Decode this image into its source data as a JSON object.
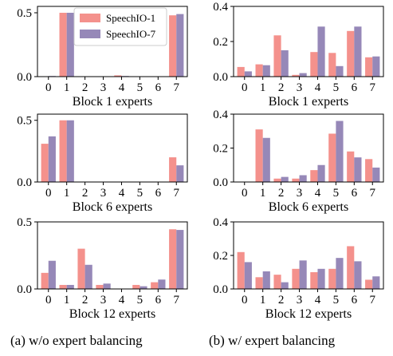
{
  "colors": {
    "speechio1": "#f4918c",
    "speechio7": "#9688b8"
  },
  "legend": {
    "series": [
      "SpeechIO-1",
      "SpeechIO-7"
    ],
    "placement": "top-center (in top-left panel)"
  },
  "captions": {
    "left": "(a) w/o expert balancing",
    "right": "(b) w/ expert balancing"
  },
  "chart_data": [
    {
      "type": "bar",
      "xlabel": "Block 1 experts",
      "categories": [
        "0",
        "1",
        "2",
        "3",
        "4",
        "5",
        "6",
        "7"
      ],
      "ylim": [
        0,
        0.55
      ],
      "yticks": [
        "0.0",
        "0.5"
      ],
      "ytick_values": [
        0,
        0.5
      ],
      "series": [
        {
          "name": "SpeechIO-1",
          "values": [
            0.0,
            0.5,
            0.0,
            0.0,
            0.01,
            0.0,
            0.0,
            0.48
          ]
        },
        {
          "name": "SpeechIO-7",
          "values": [
            0.005,
            0.5,
            0.0,
            0.0,
            0.005,
            0.0,
            0.0,
            0.49
          ]
        }
      ]
    },
    {
      "type": "bar",
      "xlabel": "Block 1 experts",
      "categories": [
        "0",
        "1",
        "2",
        "3",
        "4",
        "5",
        "6",
        "7"
      ],
      "ylim": [
        0,
        0.4
      ],
      "yticks": [
        "0.0",
        "0.2",
        "0.4"
      ],
      "ytick_values": [
        0,
        0.2,
        0.4
      ],
      "series": [
        {
          "name": "SpeechIO-1",
          "values": [
            0.055,
            0.07,
            0.235,
            0.01,
            0.14,
            0.135,
            0.26,
            0.11
          ]
        },
        {
          "name": "SpeechIO-7",
          "values": [
            0.03,
            0.065,
            0.15,
            0.02,
            0.285,
            0.06,
            0.285,
            0.115
          ]
        }
      ]
    },
    {
      "type": "bar",
      "xlabel": "Block 6 experts",
      "categories": [
        "0",
        "1",
        "2",
        "3",
        "4",
        "5",
        "6",
        "7"
      ],
      "ylim": [
        0,
        0.55
      ],
      "yticks": [
        "0.0",
        "0.5"
      ],
      "ytick_values": [
        0,
        0.5
      ],
      "series": [
        {
          "name": "SpeechIO-1",
          "values": [
            0.31,
            0.5,
            0.0,
            0.0,
            0.0,
            0.0,
            0.0,
            0.2
          ]
        },
        {
          "name": "SpeechIO-7",
          "values": [
            0.37,
            0.5,
            0.0,
            0.0,
            0.0,
            0.0,
            0.0,
            0.135
          ]
        }
      ]
    },
    {
      "type": "bar",
      "xlabel": "Block 6 experts",
      "categories": [
        "0",
        "1",
        "2",
        "3",
        "4",
        "5",
        "6",
        "7"
      ],
      "ylim": [
        0,
        0.4
      ],
      "yticks": [
        "0.0",
        "0.2",
        "0.4"
      ],
      "ytick_values": [
        0,
        0.2,
        0.4
      ],
      "series": [
        {
          "name": "SpeechIO-1",
          "values": [
            0.0,
            0.31,
            0.02,
            0.02,
            0.07,
            0.285,
            0.18,
            0.135
          ]
        },
        {
          "name": "SpeechIO-7",
          "values": [
            0.0,
            0.26,
            0.03,
            0.04,
            0.1,
            0.36,
            0.145,
            0.085
          ]
        }
      ]
    },
    {
      "type": "bar",
      "xlabel": "Block 12 experts",
      "categories": [
        "0",
        "1",
        "2",
        "3",
        "4",
        "5",
        "6",
        "7"
      ],
      "ylim": [
        0,
        0.5
      ],
      "yticks": [
        "0.0",
        "0.5"
      ],
      "ytick_values": [
        0,
        0.5
      ],
      "series": [
        {
          "name": "SpeechIO-1",
          "values": [
            0.12,
            0.03,
            0.3,
            0.03,
            0.0,
            0.03,
            0.05,
            0.445
          ]
        },
        {
          "name": "SpeechIO-7",
          "values": [
            0.21,
            0.03,
            0.18,
            0.04,
            0.0,
            0.02,
            0.07,
            0.44
          ]
        }
      ]
    },
    {
      "type": "bar",
      "xlabel": "Block 12 experts",
      "categories": [
        "0",
        "1",
        "2",
        "3",
        "4",
        "5",
        "6",
        "7"
      ],
      "ylim": [
        0,
        0.4
      ],
      "yticks": [
        "0.0",
        "0.2",
        "0.4"
      ],
      "ytick_values": [
        0,
        0.2,
        0.4
      ],
      "series": [
        {
          "name": "SpeechIO-1",
          "values": [
            0.22,
            0.07,
            0.085,
            0.12,
            0.1,
            0.12,
            0.255,
            0.055
          ]
        },
        {
          "name": "SpeechIO-7",
          "values": [
            0.16,
            0.105,
            0.04,
            0.17,
            0.12,
            0.185,
            0.165,
            0.075
          ]
        }
      ]
    }
  ]
}
